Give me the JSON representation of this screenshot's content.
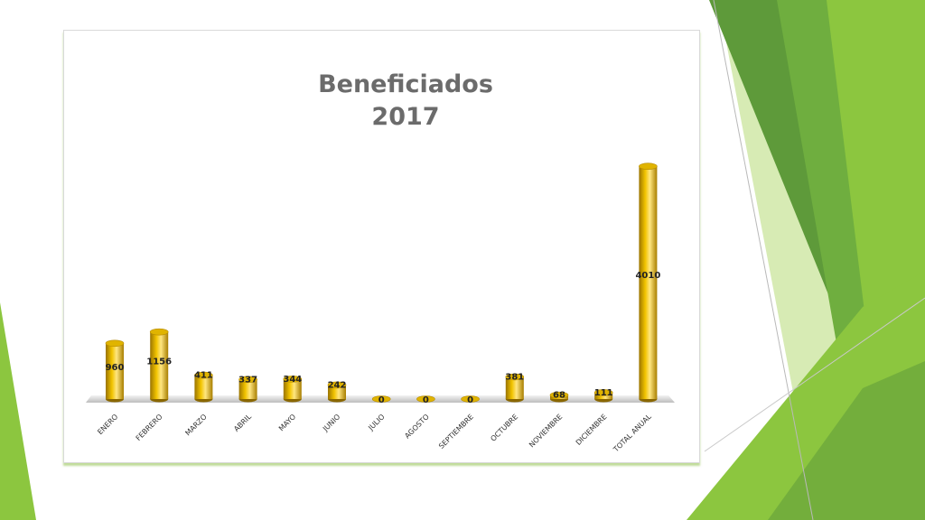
{
  "colors": {
    "bar_gold": "#e8b800",
    "bar_dark": "#9a7400",
    "green_dark": "#5e9a3a",
    "green_light": "#8cc63f",
    "green_pale": "#d7ebb4"
  },
  "chart_data": {
    "type": "bar",
    "style": "3d-cylinder",
    "title_lines": [
      "Beneficiados",
      "2017"
    ],
    "categories": [
      "ENERO",
      "FEBRERO",
      "MARZO",
      "ABRIL",
      "MAYO",
      "JUNIO",
      "JULIO",
      "AGOSTO",
      "SEPTIEMBRE",
      "OCTUBRE",
      "NOVIEMBRE",
      "DICIEMBRE",
      "TOTAL ANUAL"
    ],
    "values": [
      960,
      1156,
      411,
      337,
      344,
      242,
      0,
      0,
      0,
      381,
      68,
      111,
      4010
    ],
    "xlabel": "",
    "ylabel": "",
    "ylim": [
      0,
      4200
    ],
    "grid": false,
    "legend": "none"
  }
}
